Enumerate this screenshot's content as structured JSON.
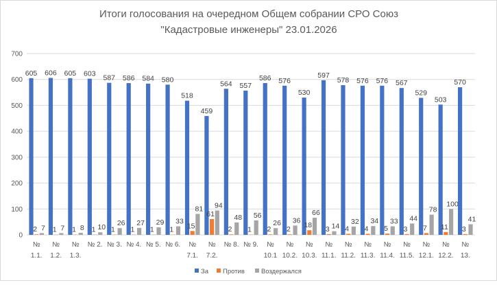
{
  "chart_data": {
    "type": "bar",
    "title": [
      "Итоги голосования на очередном Общем собрании СРО Союз",
      "\"Кадастровые инженеры\" 23.01.2026"
    ],
    "xlabel": "",
    "ylabel": "",
    "ylim": [
      0,
      700
    ],
    "yticks": [
      0,
      100,
      200,
      300,
      400,
      500,
      600,
      700
    ],
    "grid": true,
    "legend_position": "bottom",
    "categories": [
      [
        "№",
        "1.1."
      ],
      [
        "№",
        "1.2."
      ],
      [
        "№",
        "1.3."
      ],
      [
        "№ 2."
      ],
      [
        "№ 3."
      ],
      [
        "№ 4."
      ],
      [
        "№ 5."
      ],
      [
        "№ 6."
      ],
      [
        "№",
        "7.1."
      ],
      [
        "№",
        "7.2."
      ],
      [
        "№ 8."
      ],
      [
        "№ 9."
      ],
      [
        "№",
        "10.1"
      ],
      [
        "№",
        "10.2."
      ],
      [
        "№",
        "10.3."
      ],
      [
        "№",
        "11.1."
      ],
      [
        "№",
        "11.2."
      ],
      [
        "№",
        "11.3."
      ],
      [
        "№",
        "11.4."
      ],
      [
        "№",
        "11.5."
      ],
      [
        "№",
        "12.1."
      ],
      [
        "№",
        "12.2."
      ],
      [
        "№",
        "13."
      ]
    ],
    "series": [
      {
        "name": "За",
        "color": "#4472C4",
        "values": [
          605,
          606,
          605,
          603,
          587,
          586,
          584,
          580,
          518,
          459,
          564,
          557,
          586,
          576,
          530,
          597,
          578,
          576,
          576,
          567,
          529,
          503,
          570
        ]
      },
      {
        "name": "Против",
        "color": "#ED7D31",
        "values": [
          2,
          1,
          1,
          1,
          1,
          1,
          1,
          1,
          15,
          61,
          2,
          1,
          2,
          2,
          18,
          3,
          4,
          4,
          5,
          3,
          7,
          11,
          3
        ]
      },
      {
        "name": "Воздержался",
        "color": "#A5A5A5",
        "values": [
          7,
          7,
          8,
          10,
          26,
          27,
          29,
          33,
          81,
          94,
          48,
          56,
          26,
          36,
          66,
          14,
          32,
          34,
          33,
          44,
          78,
          100,
          41
        ]
      }
    ]
  }
}
